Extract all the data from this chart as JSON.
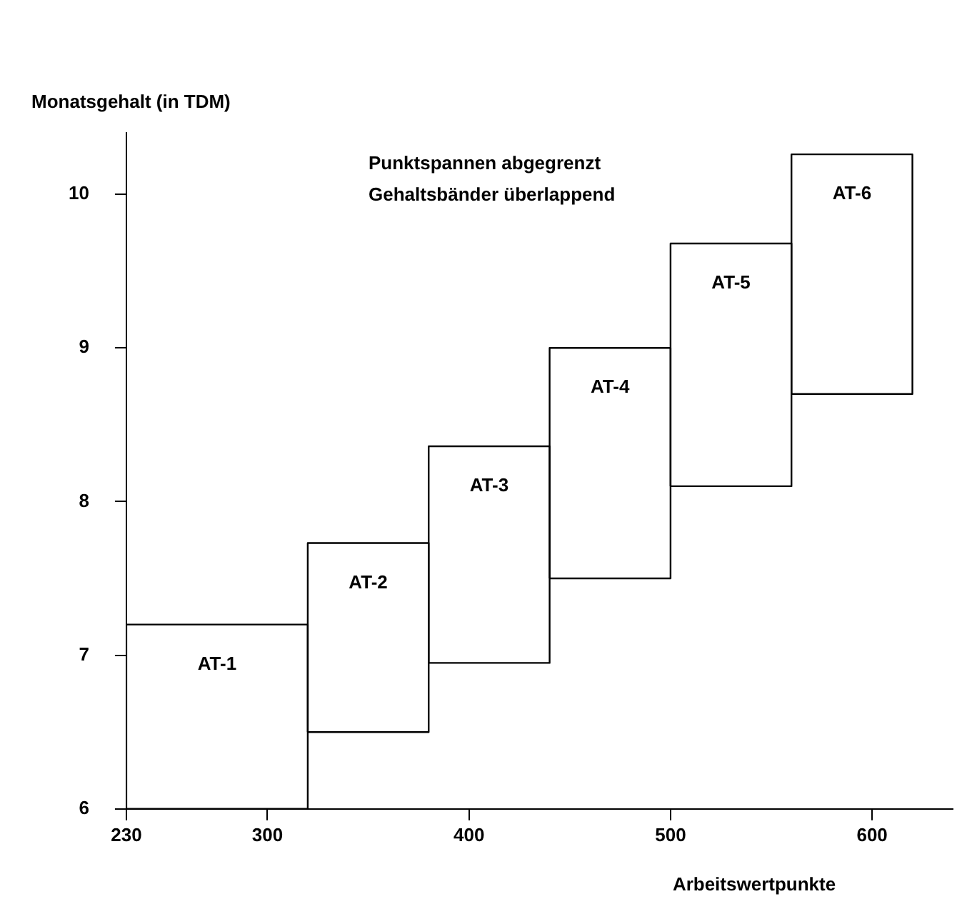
{
  "chart_data": {
    "type": "histogram",
    "ylabel": "Monatsgehalt (in TDM)",
    "xlabel": "Arbeitswertpunkte",
    "annotations": [
      "Punktspannen abgegrenzt",
      "Gehaltsbänder überlappend"
    ],
    "categories": [
      "AT-1",
      "AT-2",
      "AT-3",
      "AT-4",
      "AT-5",
      "AT-6"
    ],
    "bins": [
      230,
      320,
      380,
      440,
      500,
      560,
      620
    ],
    "base": [
      6,
      6.5,
      6.95,
      7.5,
      8.1,
      8.7
    ],
    "values": [
      1.2,
      1.23,
      1.41,
      1.5,
      1.58,
      1.56
    ],
    "color": "#000000",
    "xlim": [
      230,
      640
    ],
    "xticks": [
      230,
      300,
      400,
      500,
      600
    ],
    "ylim": [
      6,
      10.4
    ],
    "yticks": [
      6,
      7,
      8,
      9,
      10
    ]
  }
}
